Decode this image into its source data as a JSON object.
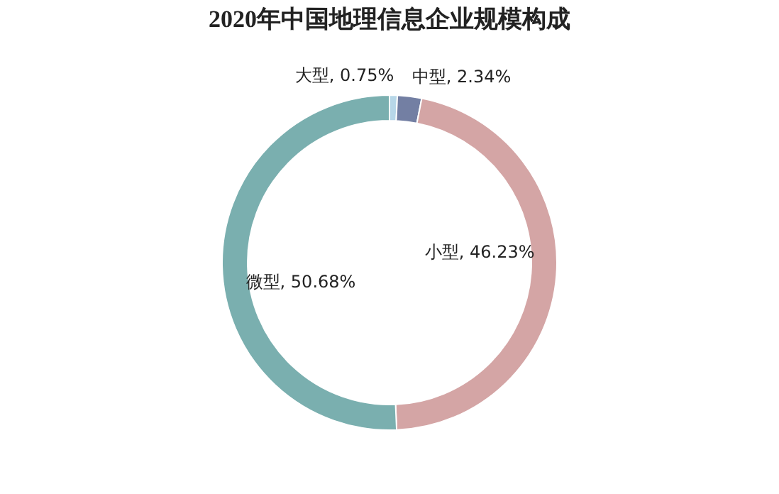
{
  "chart_data": {
    "type": "donut",
    "title": "2020年中国地理信息企业规模构成",
    "categories": [
      "大型",
      "中型",
      "小型",
      "微型"
    ],
    "values": [
      0.75,
      2.34,
      46.23,
      50.68
    ],
    "colors": [
      "#b7d7e8",
      "#737fa3",
      "#d4a5a5",
      "#7aafaf"
    ],
    "value_labels": [
      "0.75%",
      "2.34%",
      "46.23%",
      "50.68%"
    ],
    "legend": false
  }
}
